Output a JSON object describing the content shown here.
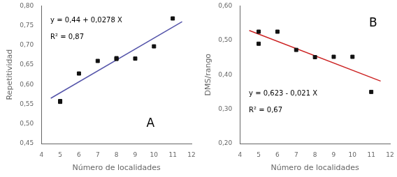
{
  "chart_data": [
    {
      "type": "scatter",
      "x_label": "Número de localidades",
      "y_label": "Repetitividad",
      "series": [
        {
          "type": "scatter",
          "marker": "square",
          "color": "#111111",
          "x": [
            5,
            5,
            6,
            7,
            8,
            8,
            9,
            10,
            11
          ],
          "values": [
            0.556,
            0.558,
            0.628,
            0.66,
            0.665,
            0.667,
            0.666,
            0.697,
            0.768
          ]
        },
        {
          "type": "line",
          "line_style": "solid",
          "color": "#5555aa",
          "x": [
            4.5,
            11.5
          ],
          "values": [
            0.5651,
            0.7597
          ]
        }
      ],
      "annotations": [
        "y = 0,44 + 0,0278 X",
        "R² = 0,87",
        "A"
      ],
      "xlim": [
        4,
        12
      ],
      "ylim": [
        0.45,
        0.8
      ],
      "xticks": [
        4,
        5,
        6,
        7,
        8,
        9,
        10,
        11,
        12
      ],
      "yticks": [
        {
          "value": 0.45,
          "label": "0,45"
        },
        {
          "value": 0.5,
          "label": "0,50"
        },
        {
          "value": 0.55,
          "label": "0,55"
        },
        {
          "value": 0.6,
          "label": "0,60"
        },
        {
          "value": 0.65,
          "label": "0,65"
        },
        {
          "value": 0.7,
          "label": "0,70"
        },
        {
          "value": 0.75,
          "label": "0,75"
        },
        {
          "value": 0.8,
          "label": "0,80"
        }
      ],
      "grid": false
    },
    {
      "type": "scatter",
      "x_label": "Número de localidades",
      "y_label": "DMS/rango",
      "series": [
        {
          "type": "scatter",
          "marker": "square",
          "color": "#111111",
          "x": [
            5,
            5,
            6,
            7,
            8,
            9,
            10,
            11
          ],
          "values": [
            0.49,
            0.525,
            0.525,
            0.472,
            0.451,
            0.452,
            0.452,
            0.35
          ]
        },
        {
          "type": "line",
          "line_style": "solid",
          "color": "#cc2222",
          "x": [
            4.5,
            11.5
          ],
          "values": [
            0.5285,
            0.3815
          ]
        }
      ],
      "annotations": [
        "y = 0,623 - 0,021 X",
        "R² = 0,67",
        "B"
      ],
      "xlim": [
        4,
        12
      ],
      "ylim": [
        0.2,
        0.6
      ],
      "xticks": [
        4,
        5,
        6,
        7,
        8,
        9,
        10,
        11,
        12
      ],
      "yticks": [
        {
          "value": 0.2,
          "label": "0,20"
        },
        {
          "value": 0.3,
          "label": "0,30"
        },
        {
          "value": 0.4,
          "label": "0,40"
        },
        {
          "value": 0.5,
          "label": "0,50"
        },
        {
          "value": 0.6,
          "label": "0,60"
        }
      ],
      "grid": false
    }
  ]
}
